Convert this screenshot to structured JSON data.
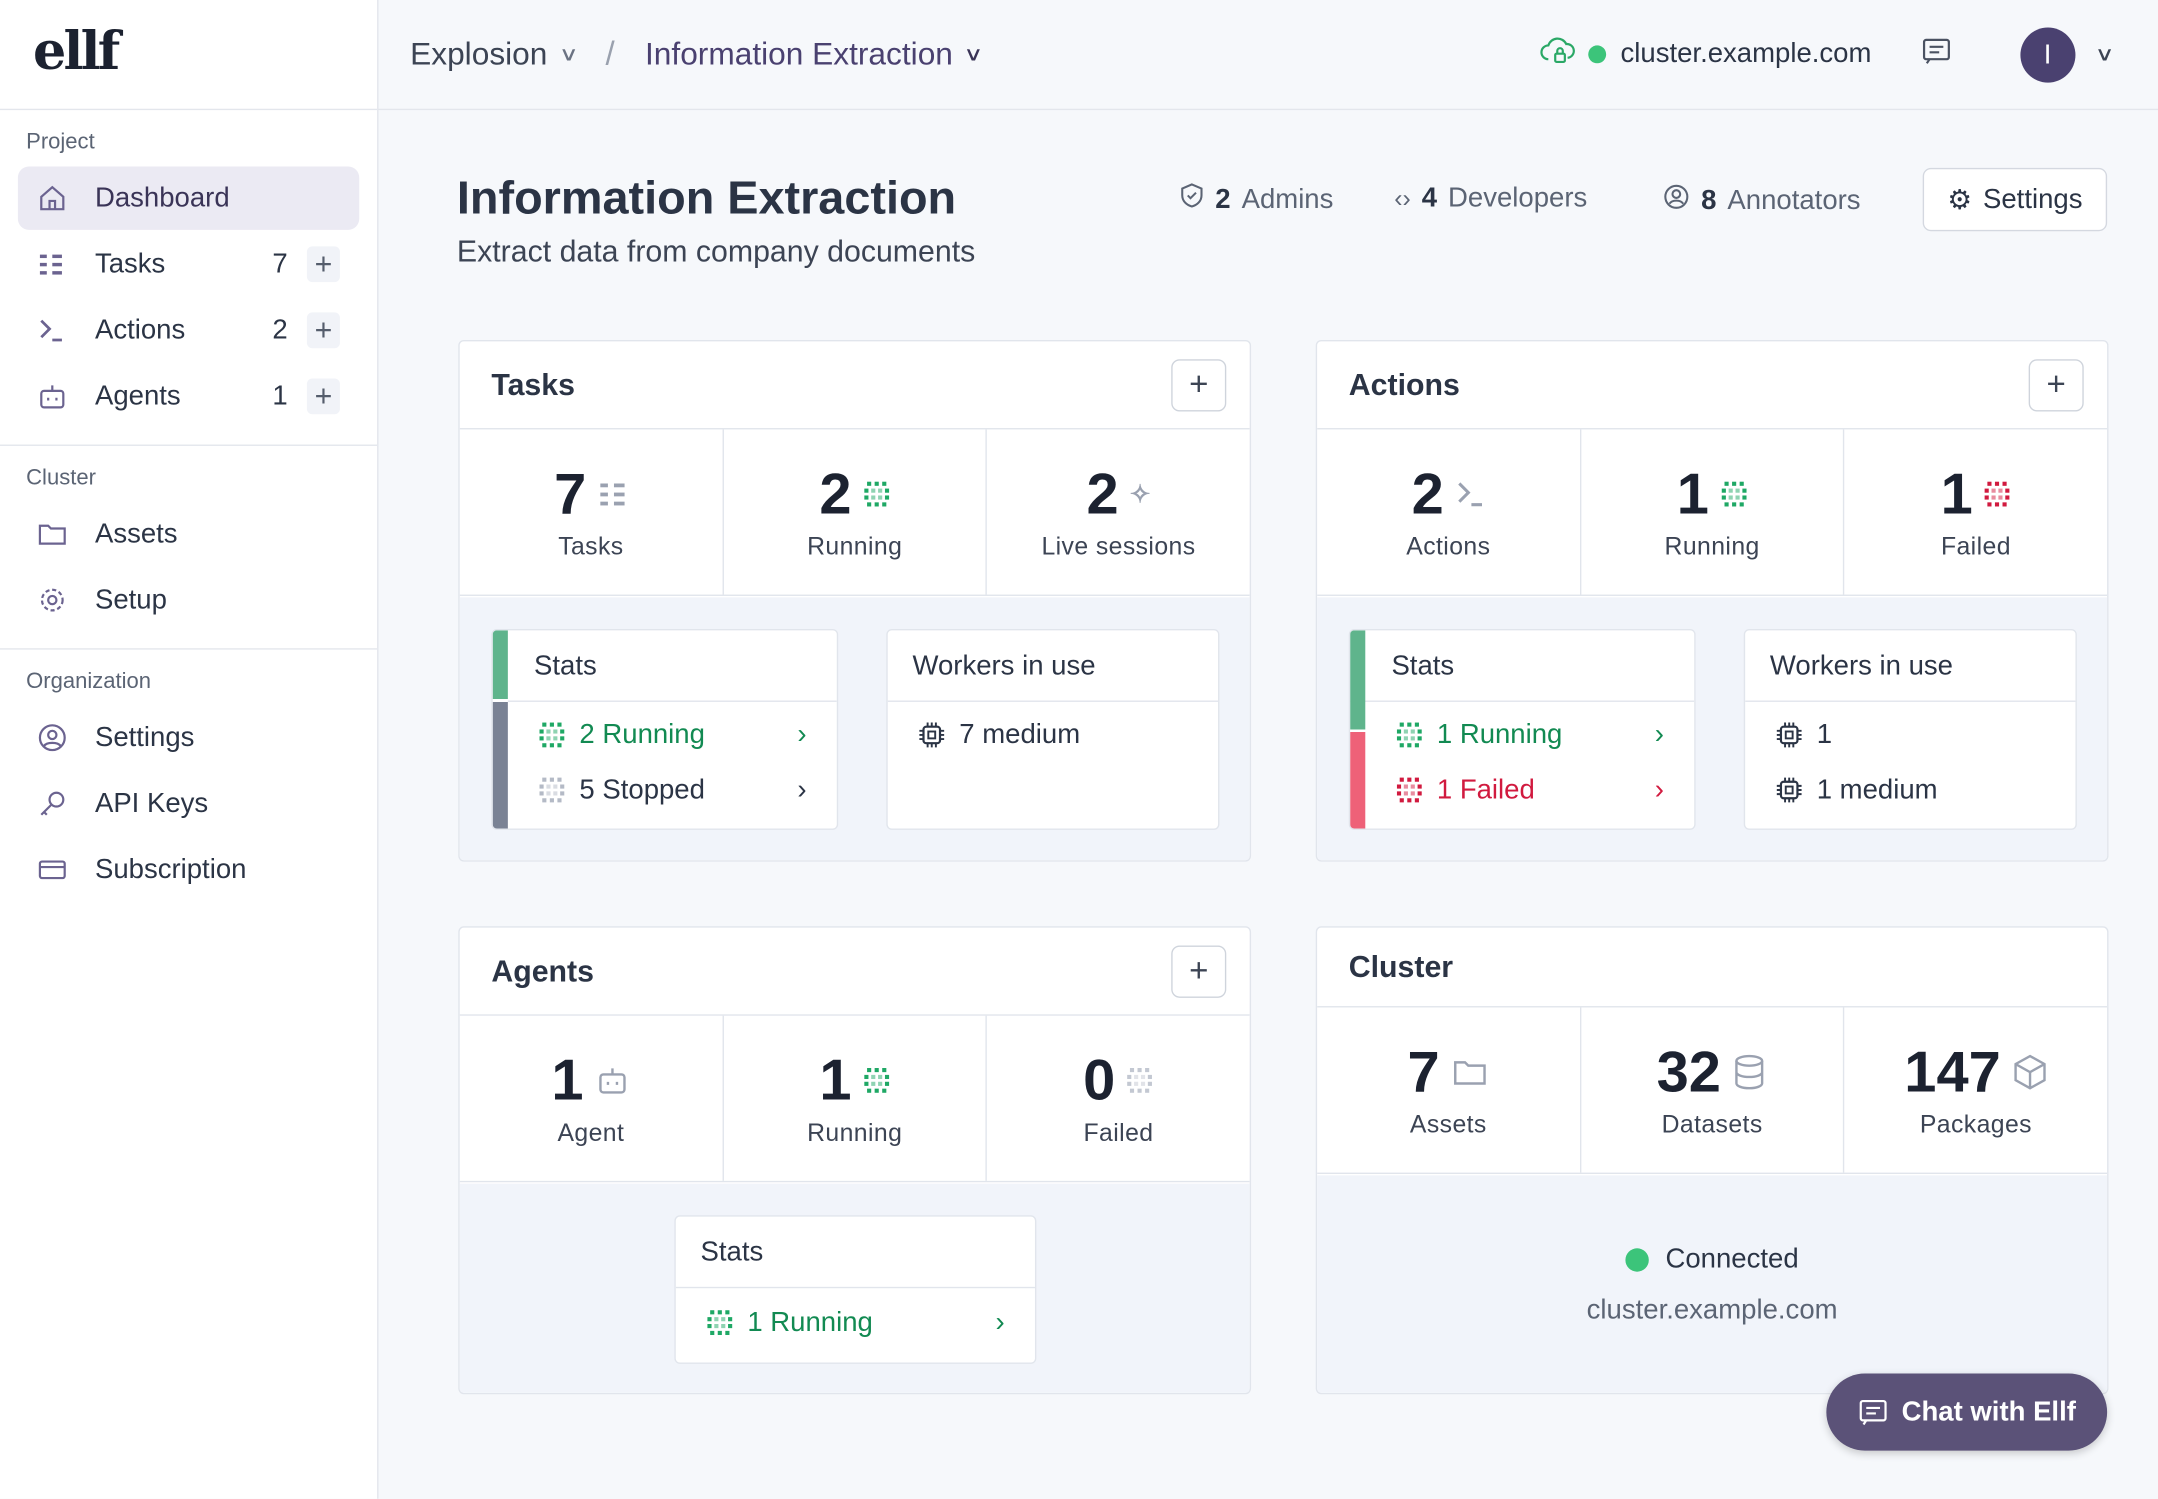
{
  "logo": "ellf",
  "sidebar": {
    "sections": [
      {
        "label": "Project",
        "items": [
          {
            "label": "Dashboard",
            "icon": "home-icon"
          },
          {
            "label": "Tasks",
            "count": "7",
            "icon": "tasks-icon"
          },
          {
            "label": "Actions",
            "count": "2",
            "icon": "terminal-icon"
          },
          {
            "label": "Agents",
            "count": "1",
            "icon": "robot-icon"
          }
        ]
      },
      {
        "label": "Cluster",
        "items": [
          {
            "label": "Assets",
            "icon": "folder-icon"
          },
          {
            "label": "Setup",
            "icon": "gear-icon"
          }
        ]
      },
      {
        "label": "Organization",
        "items": [
          {
            "label": "Settings",
            "icon": "user-circle-icon"
          },
          {
            "label": "API Keys",
            "icon": "key-icon"
          },
          {
            "label": "Subscription",
            "icon": "credit-card-icon"
          }
        ]
      }
    ],
    "add_label": "+"
  },
  "topbar": {
    "org": "Explosion",
    "project": "Information Extraction",
    "cluster": "cluster.example.com",
    "avatar": "I"
  },
  "header": {
    "title": "Information Extraction",
    "subtitle": "Extract data from company documents",
    "admins": {
      "count": "2",
      "label": "Admins"
    },
    "developers": {
      "count": "4",
      "label": "Developers"
    },
    "annotators": {
      "count": "8",
      "label": "Annotators"
    },
    "settings_label": "Settings"
  },
  "colors": {
    "accent": "#4a4170",
    "running": "#128a52",
    "failed": "#d11a3f",
    "stopped": "#7a8294"
  },
  "tasks": {
    "title": "Tasks",
    "stats": [
      {
        "value": "7",
        "label": "Tasks"
      },
      {
        "value": "2",
        "label": "Running"
      },
      {
        "value": "2",
        "label": "Live sessions"
      }
    ],
    "stats_title": "Stats",
    "rows": [
      {
        "text": "2 Running"
      },
      {
        "text": "5 Stopped"
      }
    ],
    "workers_title": "Workers in use",
    "workers": [
      {
        "text": "7 medium"
      }
    ]
  },
  "actions": {
    "title": "Actions",
    "stats": [
      {
        "value": "2",
        "label": "Actions"
      },
      {
        "value": "1",
        "label": "Running"
      },
      {
        "value": "1",
        "label": "Failed"
      }
    ],
    "stats_title": "Stats",
    "rows": [
      {
        "text": "1 Running"
      },
      {
        "text": "1 Failed"
      }
    ],
    "workers_title": "Workers in use",
    "workers": [
      {
        "text": "1"
      },
      {
        "text": "1 medium"
      }
    ]
  },
  "agents": {
    "title": "Agents",
    "stats": [
      {
        "value": "1",
        "label": "Agent"
      },
      {
        "value": "1",
        "label": "Running"
      },
      {
        "value": "0",
        "label": "Failed"
      }
    ],
    "stats_title": "Stats",
    "rows": [
      {
        "text": "1 Running"
      }
    ]
  },
  "cluster": {
    "title": "Cluster",
    "stats": [
      {
        "value": "7",
        "label": "Assets"
      },
      {
        "value": "32",
        "label": "Datasets"
      },
      {
        "value": "147",
        "label": "Packages"
      }
    ],
    "status": "Connected",
    "host": "cluster.example.com"
  },
  "chat": {
    "label": "Chat with Ellf"
  }
}
